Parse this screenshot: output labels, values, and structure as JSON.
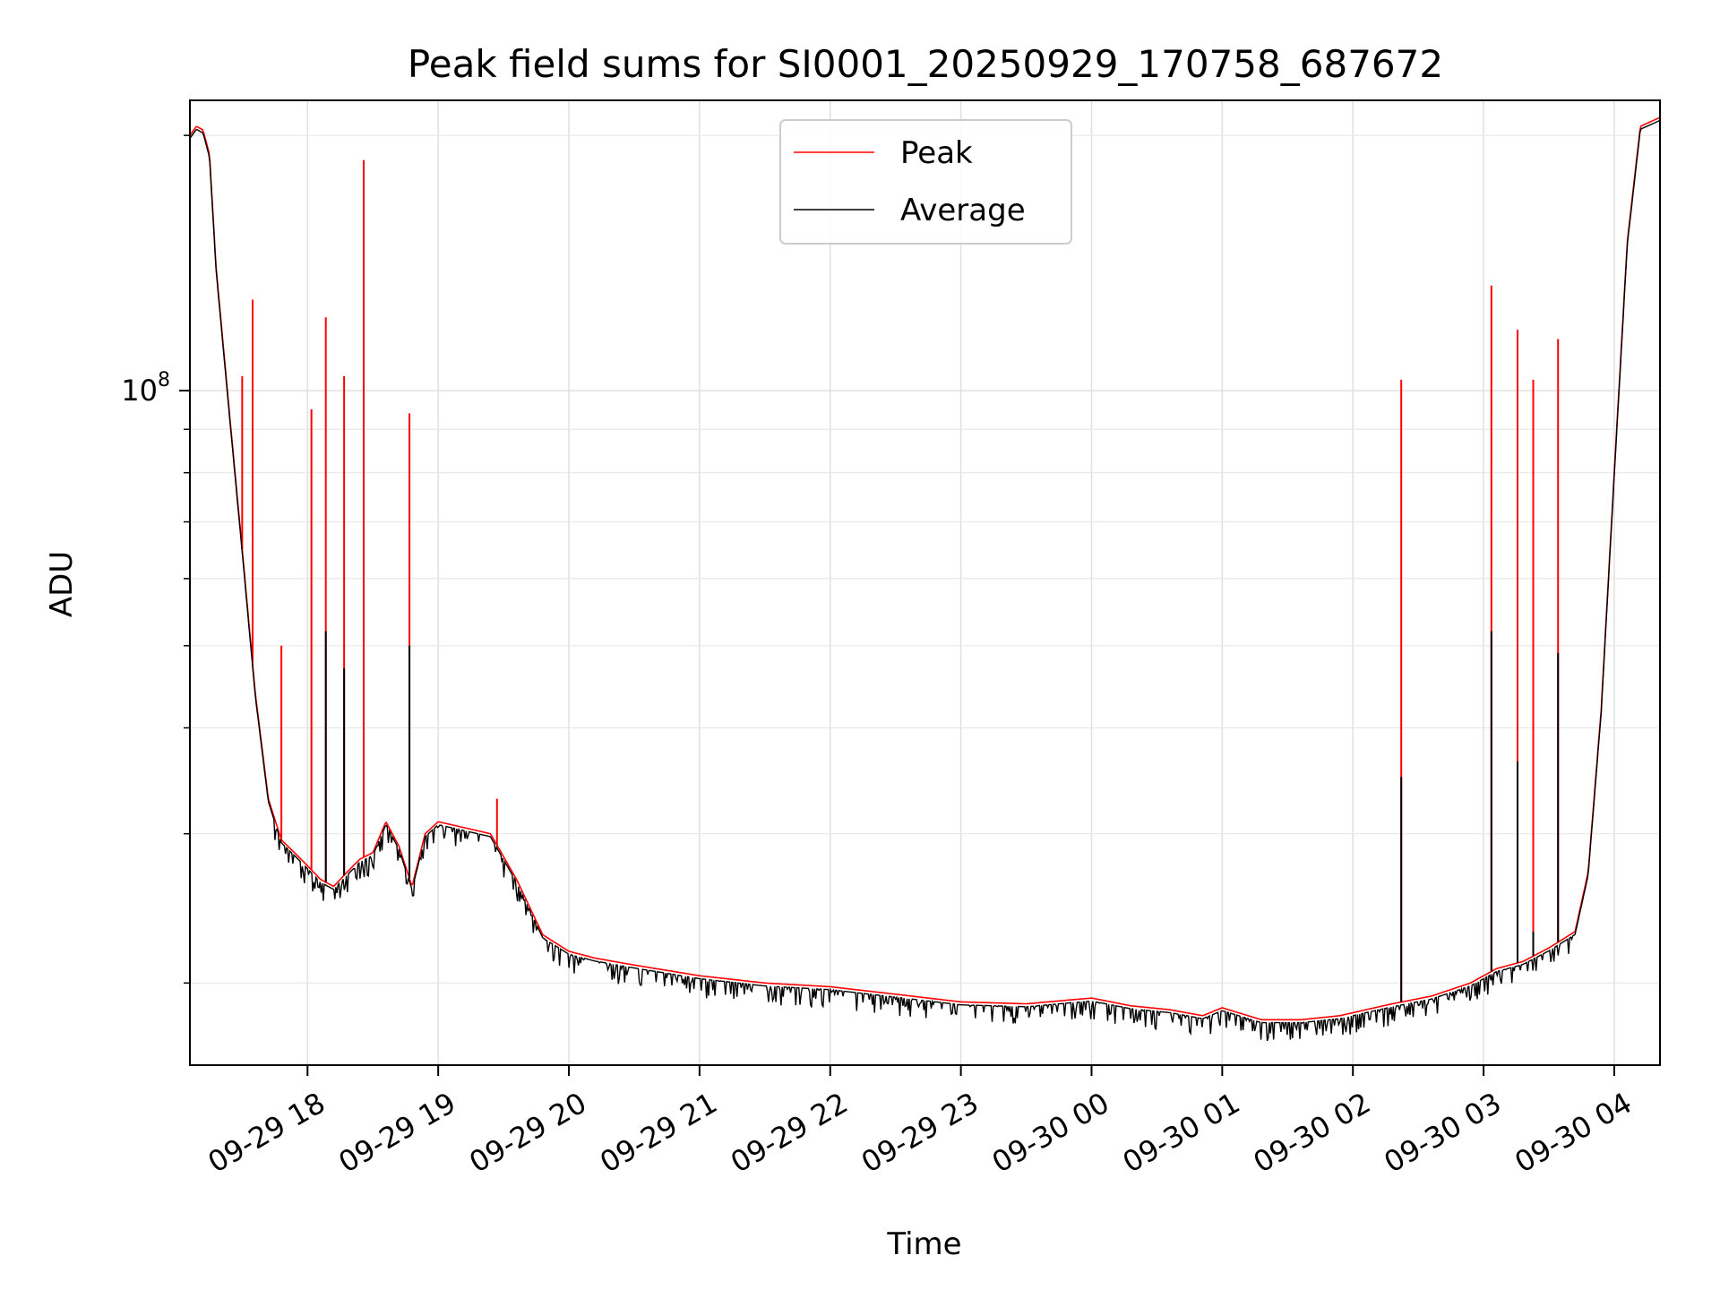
{
  "chart_data": {
    "type": "line",
    "title": "Peak field sums for SI0001_20250929_170758_687672",
    "xlabel": "Time",
    "ylabel": "ADU",
    "yscale": "log",
    "ylim": [
      16000000,
      220000000
    ],
    "xlim_hours": [
      17.1,
      28.35
    ],
    "x_start_date": "2025-09-29",
    "grid": true,
    "legend_position": "upper-center",
    "x_tick_labels": [
      "09-29 18",
      "09-29 19",
      "09-29 20",
      "09-29 21",
      "09-29 22",
      "09-29 23",
      "09-30 00",
      "09-30 01",
      "09-30 02",
      "09-30 03",
      "09-30 04"
    ],
    "x_tick_hours": [
      18,
      19,
      20,
      21,
      22,
      23,
      24,
      25,
      26,
      27,
      28
    ],
    "y_tick_label_base": "10",
    "y_tick_label_exp": "8",
    "y_tick_value": 100000000,
    "series": [
      {
        "name": "Peak",
        "color": "#ff0000",
        "x_hours": [
          17.1,
          17.15,
          17.2,
          17.25,
          17.3,
          17.4,
          17.5,
          17.6,
          17.7,
          17.8,
          17.9,
          18.0,
          18.1,
          18.2,
          18.3,
          18.4,
          18.5,
          18.6,
          18.7,
          18.8,
          18.9,
          19.0,
          19.2,
          19.4,
          19.6,
          19.8,
          20.0,
          20.2,
          20.5,
          21.0,
          21.5,
          22.0,
          22.5,
          23.0,
          23.5,
          24.0,
          24.3,
          24.6,
          24.85,
          25.0,
          25.3,
          25.6,
          25.9,
          26.1,
          26.3,
          26.6,
          26.9,
          27.1,
          27.3,
          27.5,
          27.7,
          27.8,
          27.9,
          28.0,
          28.1,
          28.2,
          28.35
        ],
        "y": [
          200000000,
          205000000,
          203000000,
          190000000,
          140000000,
          95000000,
          65000000,
          44000000,
          33000000,
          29500000,
          28500000,
          27500000,
          26500000,
          26000000,
          27000000,
          28000000,
          28500000,
          31000000,
          29000000,
          26000000,
          30000000,
          31000000,
          30500000,
          30000000,
          26500000,
          22800000,
          21800000,
          21400000,
          21000000,
          20400000,
          20000000,
          19800000,
          19400000,
          19000000,
          18900000,
          19200000,
          18800000,
          18600000,
          18300000,
          18700000,
          18100000,
          18100000,
          18300000,
          18600000,
          18900000,
          19300000,
          20000000,
          20800000,
          21200000,
          22000000,
          23000000,
          27000000,
          42000000,
          80000000,
          150000000,
          205000000,
          210000000
        ],
        "spikes": [
          {
            "x_hours": 17.5,
            "y": 104000000
          },
          {
            "x_hours": 17.58,
            "y": 128000000
          },
          {
            "x_hours": 17.8,
            "y": 50000000
          },
          {
            "x_hours": 18.03,
            "y": 95000000
          },
          {
            "x_hours": 18.14,
            "y": 122000000
          },
          {
            "x_hours": 18.28,
            "y": 104000000
          },
          {
            "x_hours": 18.43,
            "y": 187000000
          },
          {
            "x_hours": 18.78,
            "y": 94000000
          },
          {
            "x_hours": 19.45,
            "y": 33000000
          },
          {
            "x_hours": 26.37,
            "y": 103000000
          },
          {
            "x_hours": 27.06,
            "y": 133000000
          },
          {
            "x_hours": 27.26,
            "y": 118000000
          },
          {
            "x_hours": 27.38,
            "y": 103000000
          },
          {
            "x_hours": 27.57,
            "y": 115000000
          }
        ]
      },
      {
        "name": "Average",
        "color": "#000000",
        "spikes": [
          {
            "x_hours": 18.14,
            "y": 52000000
          },
          {
            "x_hours": 18.28,
            "y": 47000000
          },
          {
            "x_hours": 18.78,
            "y": 50000000
          },
          {
            "x_hours": 26.37,
            "y": 35000000
          },
          {
            "x_hours": 27.06,
            "y": 52000000
          },
          {
            "x_hours": 27.26,
            "y": 36500000
          },
          {
            "x_hours": 27.38,
            "y": 23000000
          },
          {
            "x_hours": 27.57,
            "y": 49000000
          }
        ]
      }
    ]
  }
}
